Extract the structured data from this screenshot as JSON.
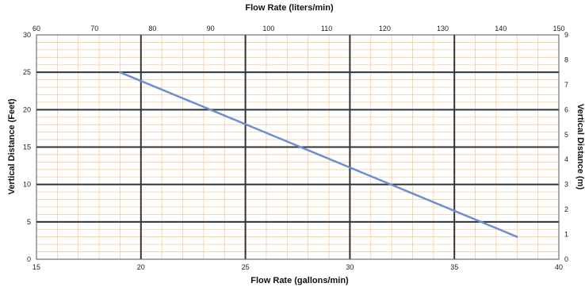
{
  "chart_data": {
    "type": "line",
    "title": "",
    "xlabel": "Flow Rate (gallons/min)",
    "ylabel": "Vertical Distance (Feet)",
    "x2label": "Flow Rate (liters/min)",
    "y2label": "Vertical Distance (m)",
    "xlim": [
      15,
      40
    ],
    "ylim": [
      0,
      30
    ],
    "x2lim": [
      60,
      150
    ],
    "y2lim": [
      0,
      9
    ],
    "xticks": [
      "15",
      "20",
      "25",
      "30",
      "35",
      "40"
    ],
    "yticks": [
      "0",
      "5",
      "10",
      "15",
      "20",
      "25",
      "30"
    ],
    "x2ticks": [
      "60",
      "70",
      "80",
      "90",
      "100",
      "110",
      "120",
      "130",
      "140",
      "150"
    ],
    "y2ticks": [
      "0",
      "1",
      "2",
      "3",
      "4",
      "5",
      "6",
      "7",
      "8",
      "9"
    ],
    "grid": true,
    "series": [
      {
        "name": "",
        "x": [
          19,
          38
        ],
        "y": [
          25,
          3
        ]
      }
    ],
    "colors": {
      "line": "#6b8fd0",
      "major_grid": "#333333",
      "minor_grid": "#f6c9a0",
      "frame": "#555555"
    }
  }
}
